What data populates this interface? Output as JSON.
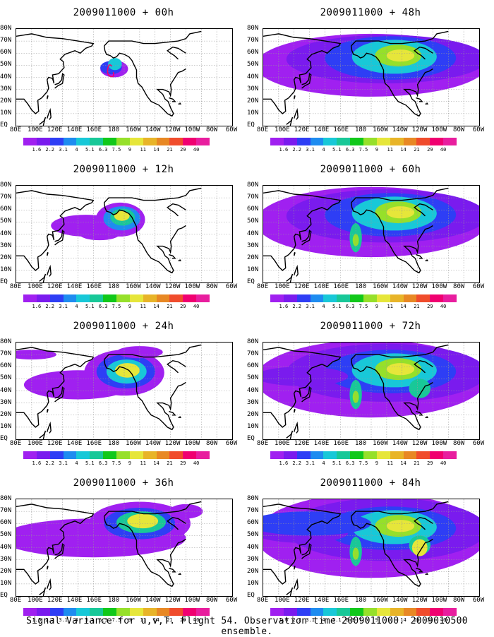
{
  "panels": [
    {
      "title": "2009011000 + 00h",
      "stage": 0
    },
    {
      "title": "2009011000 + 48h",
      "stage": 4
    },
    {
      "title": "2009011000 + 12h",
      "stage": 1
    },
    {
      "title": "2009011000 + 60h",
      "stage": 5
    },
    {
      "title": "2009011000 + 24h",
      "stage": 2
    },
    {
      "title": "2009011000 + 72h",
      "stage": 6
    },
    {
      "title": "2009011000 + 36h",
      "stage": 3
    },
    {
      "title": "2009011000 + 84h",
      "stage": 7
    }
  ],
  "lat_labels": [
    "80N",
    "70N",
    "60N",
    "50N",
    "40N",
    "30N",
    "20N",
    "10N",
    "EQ"
  ],
  "lon_labels": [
    "80E",
    "100E",
    "120E",
    "140E",
    "160E",
    "180",
    "160W",
    "140W",
    "120W",
    "100W",
    "80W",
    "60W"
  ],
  "colorbar": {
    "labels": [
      "1.6",
      "2.2",
      "3.1",
      "4",
      "5.1",
      "6.3",
      "7.5",
      "9",
      "11",
      "14",
      "21",
      "29",
      "40"
    ],
    "colors": [
      "#a020f0",
      "#7a1bee",
      "#2e3ef5",
      "#1e8cf0",
      "#18c8d8",
      "#18c898",
      "#11c81a",
      "#96e02a",
      "#e6e63a",
      "#e8b428",
      "#e88824",
      "#f04c2c",
      "#f00070",
      "#e81e9e"
    ]
  },
  "footer": "Signal Variance for u,v,T. Flight 54. Observation time 2009011000. 2009010500 ensemble."
}
